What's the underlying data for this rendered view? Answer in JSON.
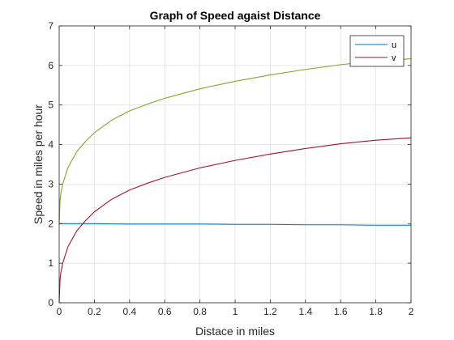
{
  "chart_data": {
    "type": "line",
    "title": "Graph of Speed agaist Distance",
    "xlabel": "Distace in miles",
    "ylabel": "Speed in miles per hour",
    "xlim": [
      0,
      2
    ],
    "ylim": [
      0,
      7
    ],
    "x_ticks": [
      0,
      0.2,
      0.4,
      0.6,
      0.8,
      1,
      1.2,
      1.4,
      1.6,
      1.8,
      2
    ],
    "x_tick_labels": [
      "0",
      "0.2",
      "0.4",
      "0.6",
      "0.8",
      "1",
      "1.2",
      "1.4",
      "1.6",
      "1.8",
      "2"
    ],
    "y_ticks": [
      0,
      1,
      2,
      3,
      4,
      5,
      6,
      7
    ],
    "y_tick_labels": [
      "0",
      "1",
      "2",
      "3",
      "4",
      "5",
      "6",
      "7"
    ],
    "grid": true,
    "legend_position": "top-right",
    "series": [
      {
        "name": "u",
        "color": "#0072BD",
        "x": [
          0,
          0.2,
          0.4,
          0.6,
          0.8,
          1.0,
          1.2,
          1.4,
          1.6,
          1.8,
          2.0
        ],
        "y": [
          2.0,
          2.0,
          1.99,
          1.99,
          1.99,
          1.98,
          1.98,
          1.97,
          1.97,
          1.96,
          1.96
        ]
      },
      {
        "name": "v",
        "color": "#A2142F",
        "x": [
          0,
          0.005,
          0.01,
          0.02,
          0.05,
          0.1,
          0.15,
          0.2,
          0.3,
          0.4,
          0.5,
          0.6,
          0.8,
          1.0,
          1.2,
          1.4,
          1.6,
          1.8,
          2.0
        ],
        "y": [
          0,
          0.6,
          0.77,
          1.0,
          1.42,
          1.82,
          2.08,
          2.3,
          2.62,
          2.85,
          3.02,
          3.17,
          3.41,
          3.6,
          3.76,
          3.9,
          4.02,
          4.11,
          4.17
        ]
      },
      {
        "color": "#77AC30",
        "x": [
          0,
          0.005,
          0.01,
          0.02,
          0.05,
          0.1,
          0.15,
          0.2,
          0.3,
          0.4,
          0.5,
          0.6,
          0.8,
          1.0,
          1.2,
          1.4,
          1.6,
          1.8,
          2.0
        ],
        "y": [
          2.0,
          2.6,
          2.77,
          3.0,
          3.42,
          3.82,
          4.08,
          4.3,
          4.62,
          4.85,
          5.02,
          5.17,
          5.41,
          5.6,
          5.76,
          5.9,
          6.02,
          6.11,
          6.17
        ]
      }
    ]
  }
}
